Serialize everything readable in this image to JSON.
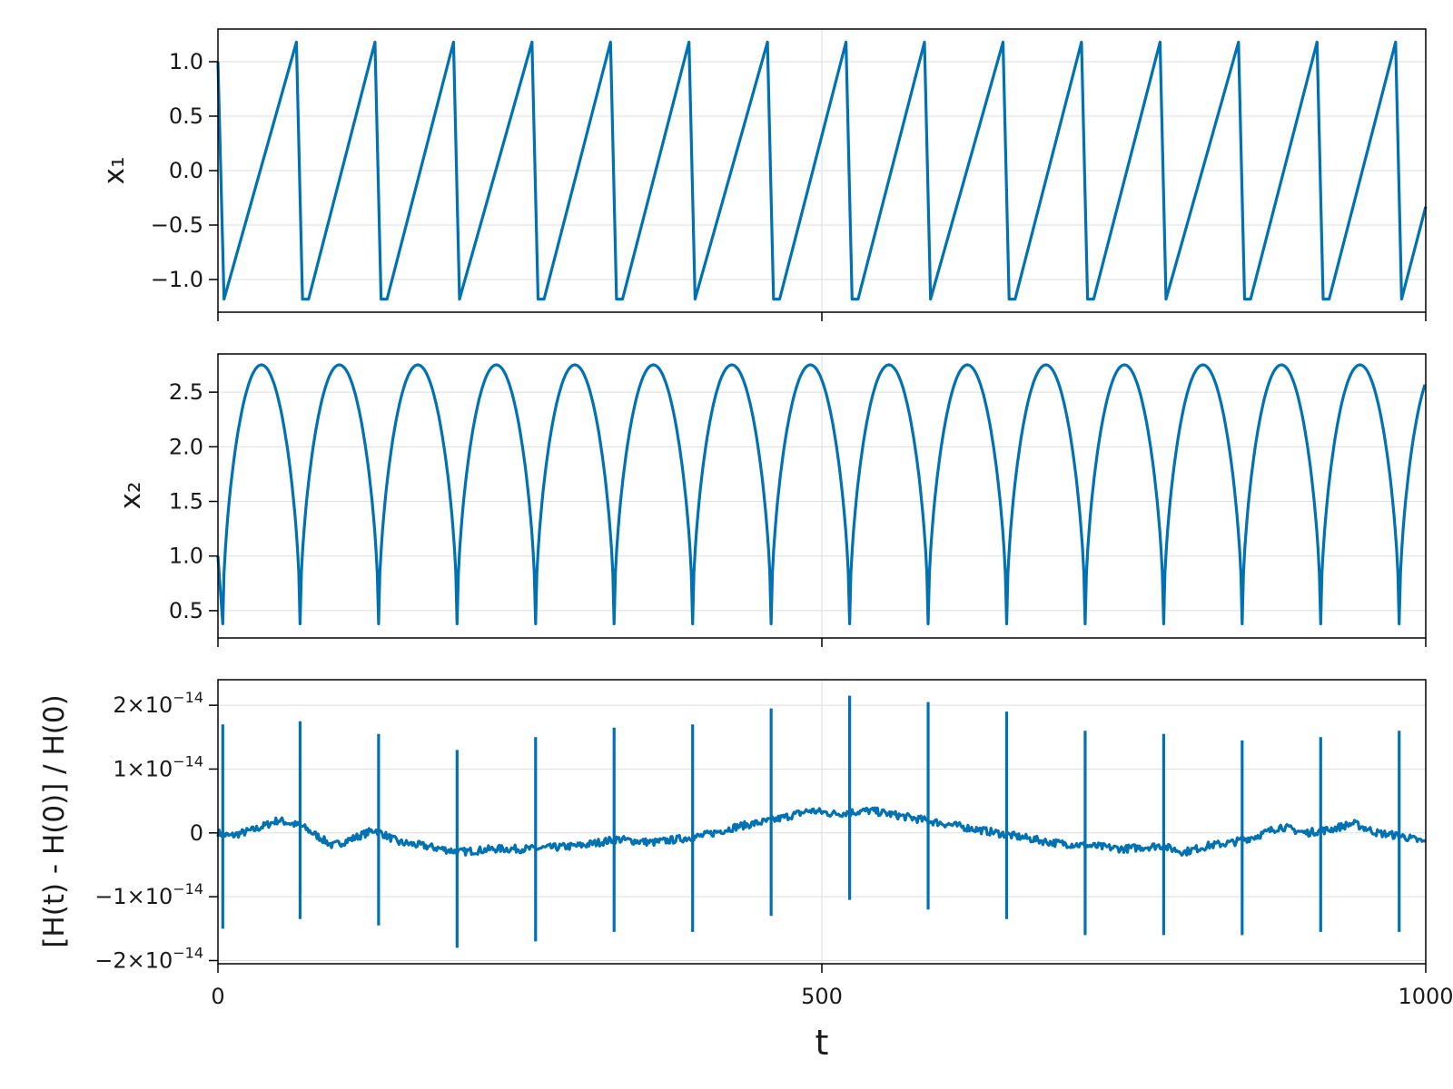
{
  "chart_data": [
    {
      "type": "line",
      "id": "x1",
      "ylabel": "x₁",
      "xlim": [
        0,
        1000
      ],
      "ylim": [
        -1.3,
        1.3
      ],
      "xticks": [
        0,
        500,
        1000
      ],
      "yticks": [
        1.0,
        0.5,
        0.0,
        -0.5,
        -1.0
      ],
      "ytick_labels": [
        "1.0",
        "0.5",
        "0.0",
        "−0.5",
        "−1.0"
      ],
      "grid": true,
      "color": "#0072b2",
      "series": [
        {
          "description": "relaxation oscillation between about -1.18 and 1.18",
          "x": [
            0,
            5,
            65,
            70,
            75,
            130,
            135,
            140,
            195,
            200,
            260,
            265,
            270,
            325,
            330,
            335,
            390,
            395,
            455,
            460,
            465,
            520,
            525,
            530,
            585,
            590,
            650,
            655,
            660,
            715,
            720,
            725,
            780,
            785,
            845,
            850,
            855,
            910,
            915,
            920,
            975,
            980,
            1000
          ],
          "y": [
            1.0,
            -1.18,
            1.18,
            -1.18,
            -1.18,
            1.18,
            -1.18,
            -1.18,
            1.18,
            -1.18,
            1.18,
            -1.18,
            -1.18,
            1.18,
            -1.18,
            -1.18,
            1.18,
            -1.18,
            1.18,
            -1.18,
            -1.18,
            1.18,
            -1.18,
            -1.18,
            1.18,
            -1.18,
            1.18,
            -1.18,
            -1.18,
            1.18,
            -1.18,
            -1.18,
            1.18,
            -1.18,
            1.18,
            -1.18,
            -1.18,
            1.18,
            -1.18,
            -1.18,
            1.18,
            -1.18,
            -0.33
          ]
        }
      ]
    },
    {
      "type": "line",
      "id": "x2",
      "ylabel": "x₂",
      "xlim": [
        0,
        1000
      ],
      "ylim": [
        0.25,
        2.85
      ],
      "xticks": [
        0,
        500,
        1000
      ],
      "yticks": [
        2.5,
        2.0,
        1.5,
        1.0,
        0.5
      ],
      "ytick_labels": [
        "2.5",
        "2.0",
        "1.5",
        "1.0",
        "0.5"
      ],
      "grid": true,
      "color": "#0072b2",
      "series": [
        {
          "description": "arched oscillation with minima about 0.38 and maxima about 2.75",
          "minima_t": [
            4,
            68,
            133,
            198,
            263,
            328,
            393,
            458,
            523,
            588,
            653,
            718,
            783,
            848,
            913,
            978
          ],
          "min_value": 0.38,
          "max_value": 2.75,
          "end_point": [
            1000,
            2.68
          ]
        }
      ]
    },
    {
      "type": "line",
      "id": "energy",
      "ylabel": "[H(t) - H(0)] / H(0)",
      "xlabel": "t",
      "xlim": [
        0,
        1000
      ],
      "ylim": [
        -2.05e-14,
        2.4e-14
      ],
      "xticks": [
        0,
        500,
        1000
      ],
      "xtick_labels": [
        "0",
        "500",
        "1000"
      ],
      "yticks": [
        2e-14,
        1e-14,
        0,
        -1e-14,
        -2e-14
      ],
      "ytick_labels": [
        {
          "mant": "2×10",
          "exp": "−14"
        },
        {
          "mant": "1×10",
          "exp": "−14"
        },
        {
          "mant": "0",
          "exp": ""
        },
        {
          "mant": "−1×10",
          "exp": "−14"
        },
        {
          "mant": "−2×10",
          "exp": "−14"
        }
      ],
      "grid": true,
      "color": "#0072b2",
      "series": [
        {
          "description": "baseline drift with spikes near x2 minima",
          "baseline_t": [
            0,
            10,
            30,
            50,
            70,
            95,
            110,
            130,
            150,
            170,
            200,
            230,
            260,
            300,
            330,
            360,
            400,
            430,
            460,
            490,
            510,
            540,
            570,
            600,
            630,
            660,
            690,
            720,
            750,
            780,
            800,
            820,
            840,
            860,
            880,
            900,
            920,
            940,
            960,
            980,
            1000
          ],
          "baseline_v": [
            0,
            -5e-16,
            5e-16,
            2e-15,
            1e-15,
            -2e-15,
            -1e-15,
            5e-16,
            -1.5e-15,
            -2e-15,
            -3e-15,
            -2.5e-15,
            -2.5e-15,
            -2e-15,
            -1e-15,
            -1.5e-15,
            -5e-16,
            1e-15,
            2e-15,
            3.5e-15,
            3e-15,
            3.5e-15,
            2.5e-15,
            1.5e-15,
            5e-16,
            -5e-16,
            -1.5e-15,
            -2e-15,
            -2.5e-15,
            -2e-15,
            -3e-15,
            -2e-15,
            -1.5e-15,
            -5e-16,
            1e-15,
            0.0,
            5e-16,
            1.5e-15,
            0.0,
            -5e-16,
            -1.5e-15
          ],
          "spikes": [
            {
              "t": 4,
              "hi": 1.7e-14,
              "lo": -1.5e-14
            },
            {
              "t": 68,
              "hi": 1.75e-14,
              "lo": -1.35e-14
            },
            {
              "t": 133,
              "hi": 1.55e-14,
              "lo": -1.45e-14
            },
            {
              "t": 198,
              "hi": 1.3e-14,
              "lo": -1.8e-14
            },
            {
              "t": 263,
              "hi": 1.5e-14,
              "lo": -1.7e-14
            },
            {
              "t": 328,
              "hi": 1.65e-14,
              "lo": -1.55e-14
            },
            {
              "t": 393,
              "hi": 1.7e-14,
              "lo": -1.55e-14
            },
            {
              "t": 458,
              "hi": 1.95e-14,
              "lo": -1.3e-14
            },
            {
              "t": 523,
              "hi": 2.15e-14,
              "lo": -1.05e-14
            },
            {
              "t": 588,
              "hi": 2.05e-14,
              "lo": -1.2e-14
            },
            {
              "t": 653,
              "hi": 1.9e-14,
              "lo": -1.35e-14
            },
            {
              "t": 718,
              "hi": 1.6e-14,
              "lo": -1.6e-14
            },
            {
              "t": 783,
              "hi": 1.55e-14,
              "lo": -1.6e-14
            },
            {
              "t": 848,
              "hi": 1.45e-14,
              "lo": -1.6e-14
            },
            {
              "t": 913,
              "hi": 1.5e-14,
              "lo": -1.55e-14
            },
            {
              "t": 978,
              "hi": 1.6e-14,
              "lo": -1.55e-14
            }
          ]
        }
      ]
    }
  ]
}
